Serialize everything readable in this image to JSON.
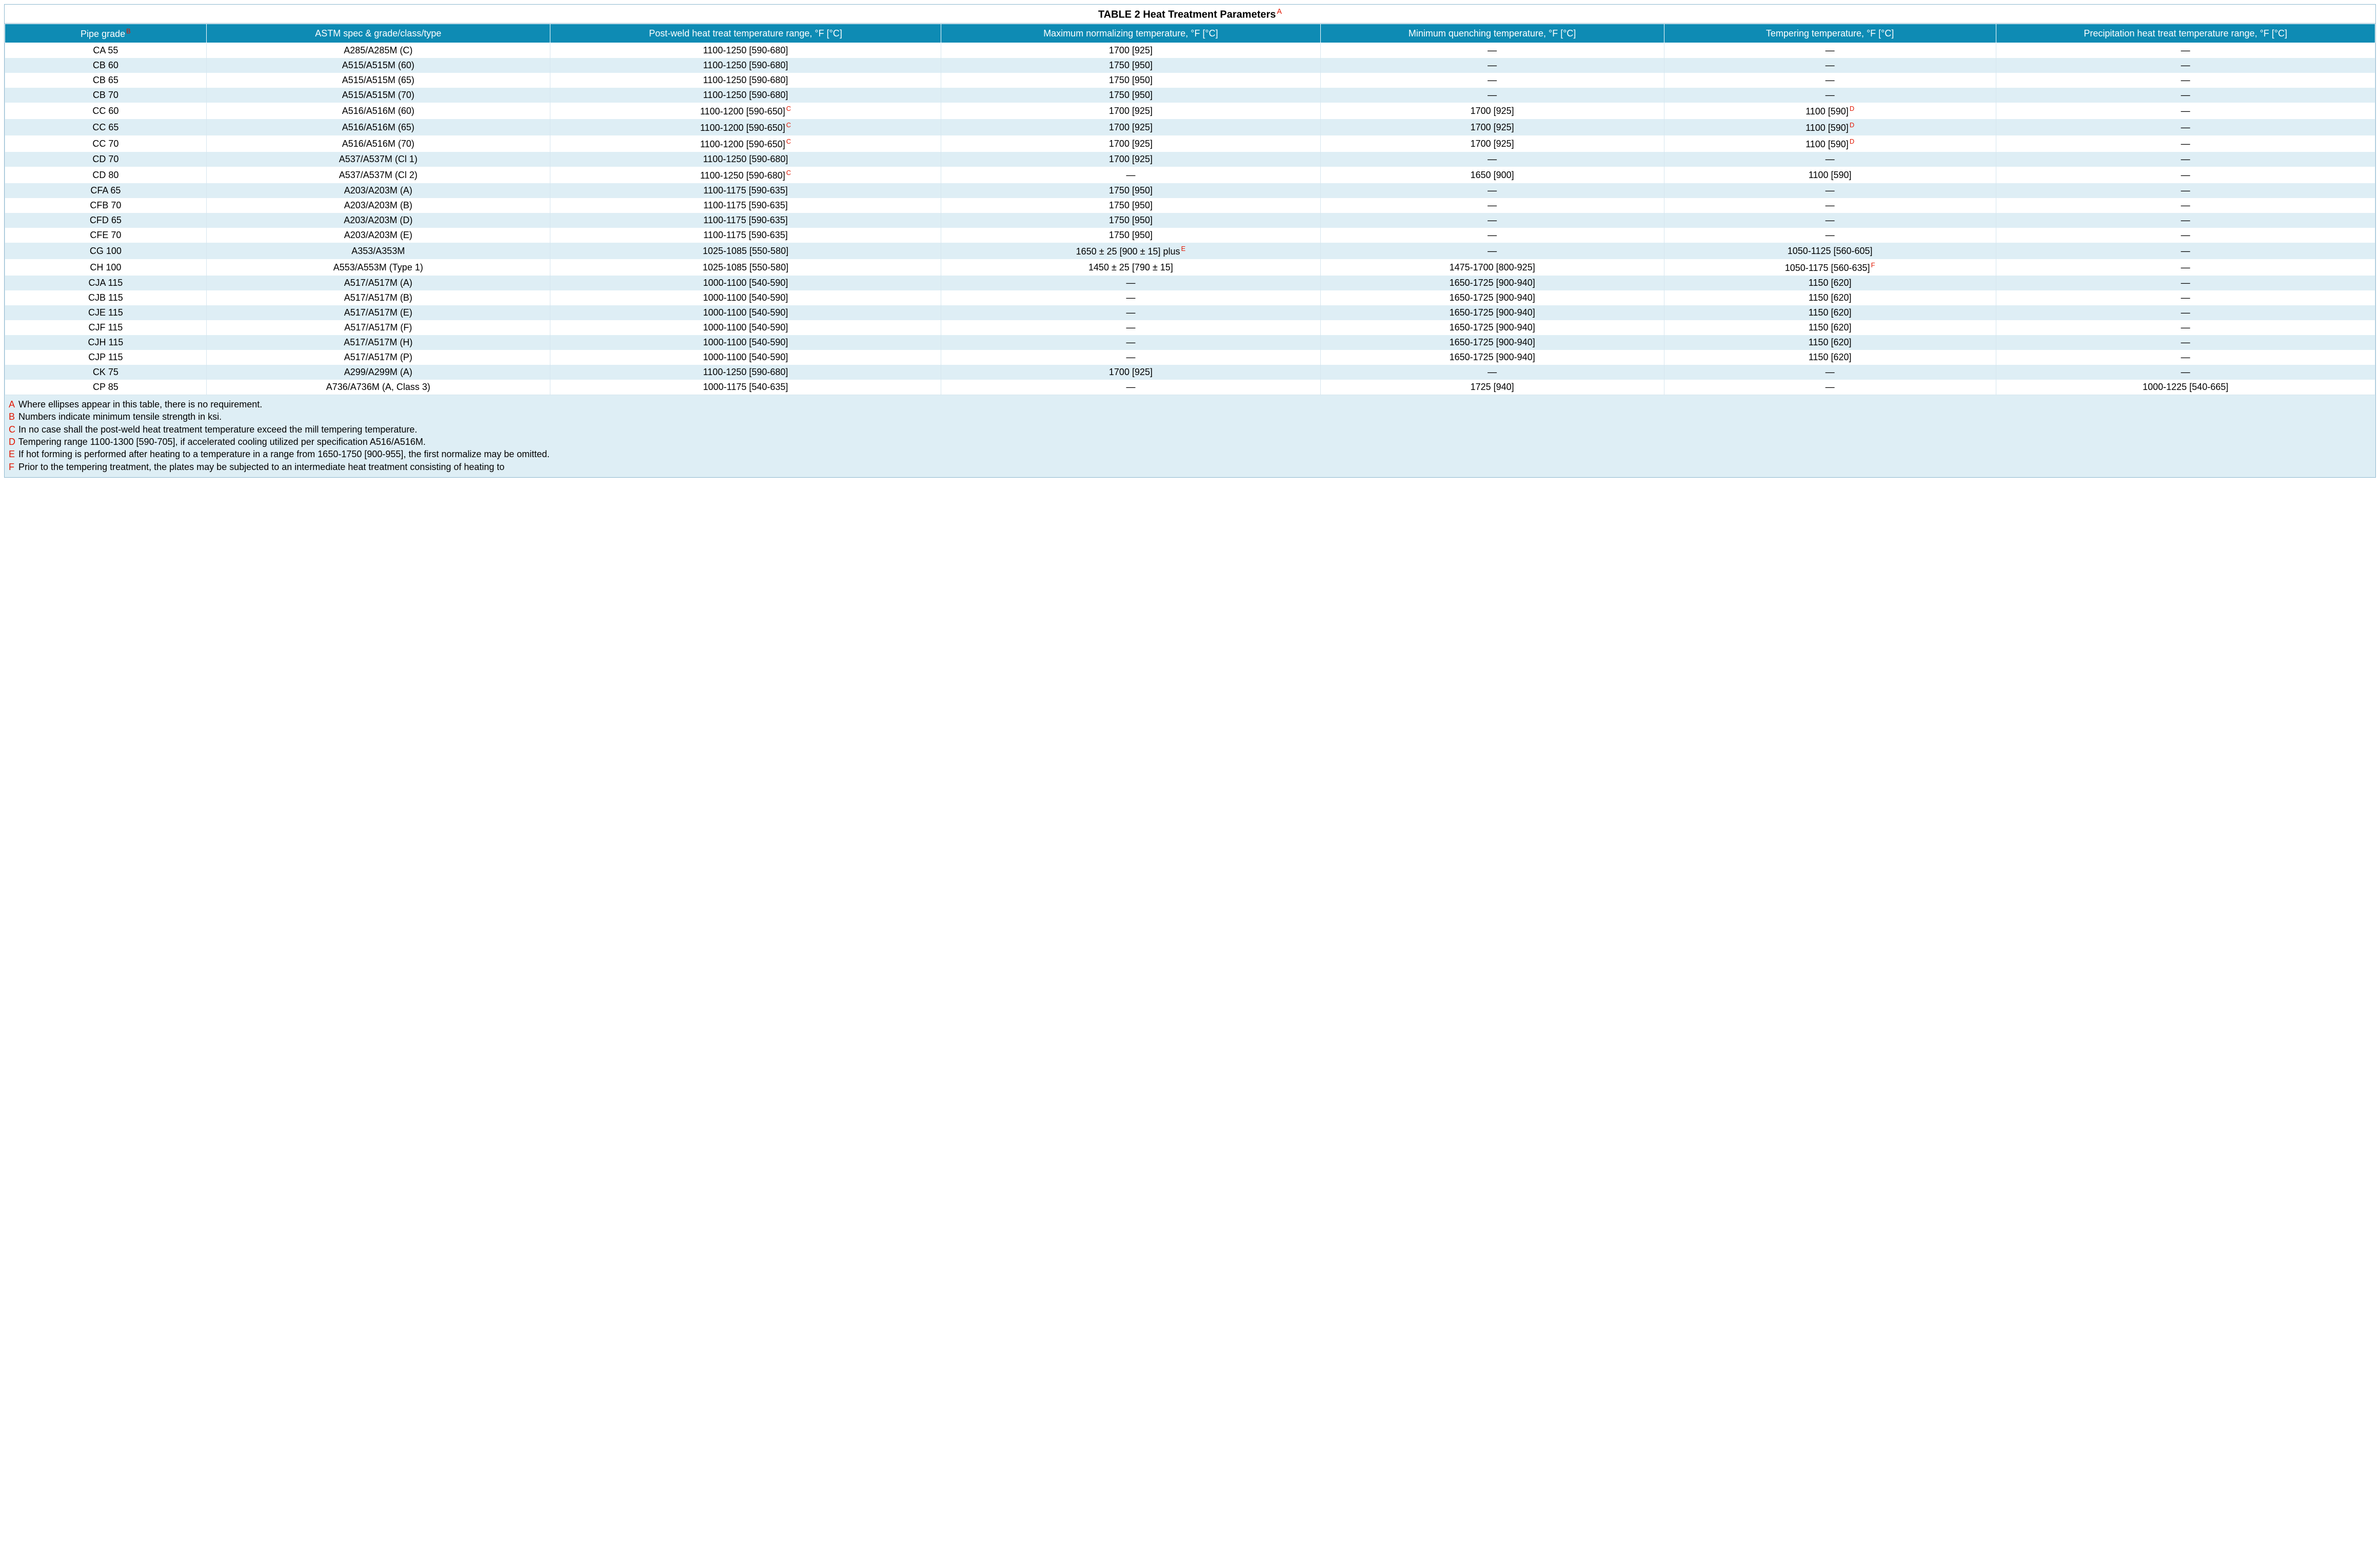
{
  "title": "TABLE 2 Heat Treatment Parameters",
  "title_sup": "A",
  "colors": {
    "header_bg": "#0e8bb4",
    "header_fg": "#ffffff",
    "row_alt": "#deeef5",
    "border": "#8fb8cf",
    "sup": "#e11600"
  },
  "columns": [
    {
      "label": "Pipe grade",
      "sup": "B"
    },
    {
      "label": "ASTM spec & grade/class/type"
    },
    {
      "label": "Post-weld heat treat temperature range, °F [°C]"
    },
    {
      "label": "Maximum normalizing temperature, °F [°C]"
    },
    {
      "label": "Minimum quenching temperature, °F [°C]"
    },
    {
      "label": "Tempering temperature, °F [°C]"
    },
    {
      "label": "Precipitation heat treat temperature range, °F [°C]"
    }
  ],
  "rows": [
    {
      "c": [
        "CA 55",
        "A285/A285M (C)",
        "1100-1250 [590-680]",
        "1700 [925]",
        "—",
        "—",
        "—"
      ]
    },
    {
      "c": [
        "CB 60",
        "A515/A515M (60)",
        "1100-1250 [590-680]",
        "1750 [950]",
        "—",
        "—",
        "—"
      ]
    },
    {
      "c": [
        "CB 65",
        "A515/A515M (65)",
        "1100-1250 [590-680]",
        "1750 [950]",
        "—",
        "—",
        "—"
      ]
    },
    {
      "c": [
        "CB 70",
        "A515/A515M (70)",
        "1100-1250 [590-680]",
        "1750 [950]",
        "—",
        "—",
        "—"
      ]
    },
    {
      "c": [
        "CC 60",
        "A516/A516M (60)",
        "1100-1200 [590-650]",
        "1700 [925]",
        "1700 [925]",
        "1100 [590]",
        "—"
      ],
      "sups": {
        "2": "C",
        "5": "D"
      }
    },
    {
      "c": [
        "CC 65",
        "A516/A516M (65)",
        "1100-1200 [590-650]",
        "1700 [925]",
        "1700 [925]",
        "1100 [590]",
        "—"
      ],
      "sups": {
        "2": "C",
        "5": "D"
      }
    },
    {
      "c": [
        "CC 70",
        "A516/A516M (70)",
        "1100-1200 [590-650]",
        "1700 [925]",
        "1700 [925]",
        "1100 [590]",
        "—"
      ],
      "sups": {
        "2": "C",
        "5": "D"
      }
    },
    {
      "c": [
        "CD 70",
        "A537/A537M (Cl 1)",
        "1100-1250 [590-680]",
        "1700 [925]",
        "—",
        "—",
        "—"
      ]
    },
    {
      "c": [
        "CD 80",
        "A537/A537M (Cl 2)",
        "1100-1250 [590-680]",
        "—",
        "1650 [900]",
        "1100 [590]",
        "—"
      ],
      "sups": {
        "2": "C"
      }
    },
    {
      "c": [
        "CFA 65",
        "A203/A203M (A)",
        "1100-1175 [590-635]",
        "1750 [950]",
        "—",
        "—",
        "—"
      ]
    },
    {
      "c": [
        "CFB 70",
        "A203/A203M (B)",
        "1100-1175 [590-635]",
        "1750 [950]",
        "—",
        "—",
        "—"
      ]
    },
    {
      "c": [
        "CFD 65",
        "A203/A203M (D)",
        "1100-1175 [590-635]",
        "1750 [950]",
        "—",
        "—",
        "—"
      ]
    },
    {
      "c": [
        "CFE 70",
        "A203/A203M (E)",
        "1100-1175 [590-635]",
        "1750 [950]",
        "—",
        "—",
        "—"
      ]
    },
    {
      "c": [
        "CG 100",
        "A353/A353M",
        "1025-1085 [550-580]",
        "1650 ± 25 [900 ± 15] plus",
        "—",
        "1050-1125 [560-605]",
        "—"
      ],
      "sups": {
        "3": "E"
      }
    },
    {
      "c": [
        "CH 100",
        "A553/A553M (Type 1)",
        "1025-1085 [550-580]",
        "1450 ± 25 [790 ± 15]",
        "1475-1700 [800-925]",
        "1050-1175 [560-635]",
        "—"
      ],
      "sups": {
        "5": "F"
      }
    },
    {
      "c": [
        "CJA 115",
        "A517/A517M (A)",
        "1000-1100 [540-590]",
        "—",
        "1650-1725 [900-940]",
        "1150 [620]",
        "—"
      ]
    },
    {
      "c": [
        "CJB 115",
        "A517/A517M (B)",
        "1000-1100 [540-590]",
        "—",
        "1650-1725 [900-940]",
        "1150 [620]",
        "—"
      ]
    },
    {
      "c": [
        "CJE 115",
        "A517/A517M (E)",
        "1000-1100 [540-590]",
        "—",
        "1650-1725 [900-940]",
        "1150 [620]",
        "—"
      ]
    },
    {
      "c": [
        "CJF 115",
        "A517/A517M (F)",
        "1000-1100 [540-590]",
        "—",
        "1650-1725 [900-940]",
        "1150 [620]",
        "—"
      ]
    },
    {
      "c": [
        "CJH 115",
        "A517/A517M (H)",
        "1000-1100 [540-590]",
        "—",
        "1650-1725 [900-940]",
        "1150 [620]",
        "—"
      ]
    },
    {
      "c": [
        "CJP 115",
        "A517/A517M (P)",
        "1000-1100 [540-590]",
        "—",
        "1650-1725 [900-940]",
        "1150 [620]",
        "—"
      ]
    },
    {
      "c": [
        "CK 75",
        "A299/A299M (A)",
        "1100-1250 [590-680]",
        "1700 [925]",
        "—",
        "—",
        "—"
      ]
    },
    {
      "c": [
        "CP 85",
        "A736/A736M (A, Class 3)",
        "1000-1175 [540-635]",
        "—",
        "1725 [940]",
        "—",
        "1000-1225 [540-665]"
      ]
    }
  ],
  "footnotes": [
    {
      "lead": "A",
      "text": "Where ellipses appear in this table, there is no requirement."
    },
    {
      "lead": "B",
      "text": "Numbers indicate minimum tensile strength in ksi."
    },
    {
      "lead": "C",
      "text": "In no case shall the post-weld heat treatment temperature exceed the mill tempering temperature."
    },
    {
      "lead": "D",
      "text": "Tempering range 1100-1300 [590-705], if accelerated cooling utilized per specification A516/A516M."
    },
    {
      "lead": "E",
      "text": "If hot forming is performed after heating to a temperature in a range from 1650-1750 [900-955], the first normalize may be omitted."
    },
    {
      "lead": "F",
      "text": "Prior to the tempering treatment, the plates may be subjected to an intermediate heat treatment consisting of heating to"
    }
  ]
}
